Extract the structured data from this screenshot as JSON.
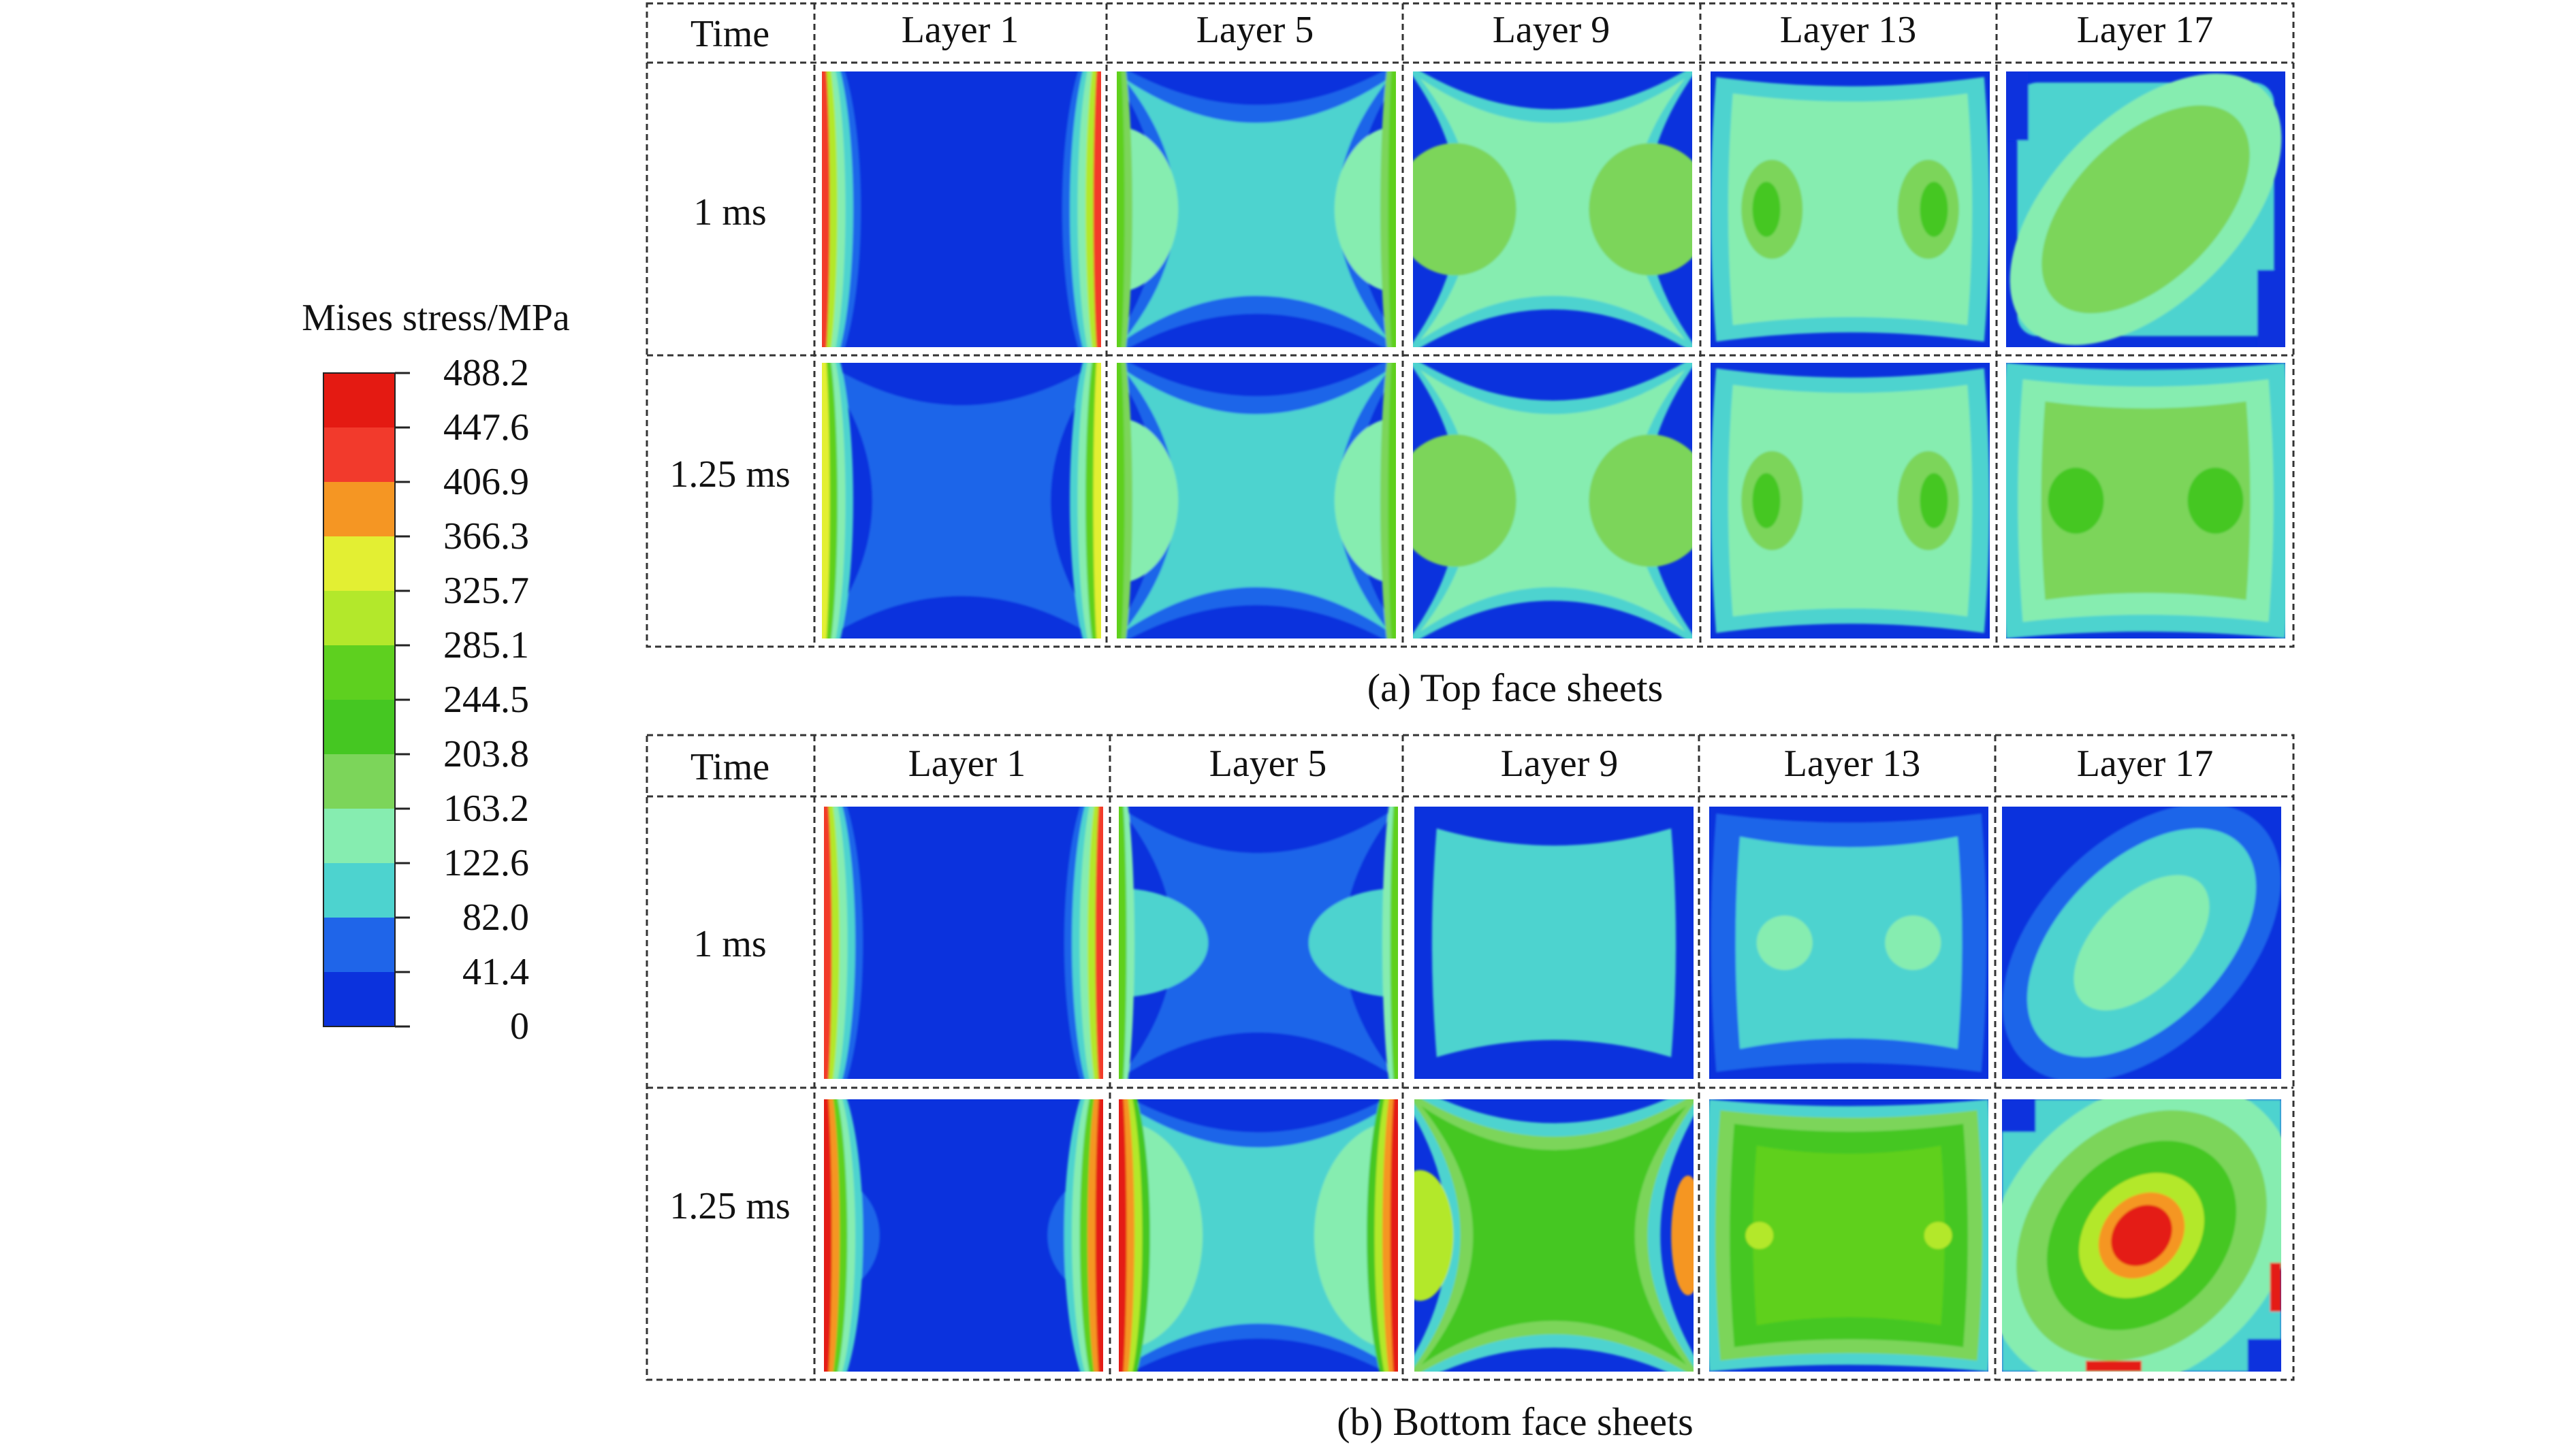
{
  "legend": {
    "title": "Mises stress/MPa",
    "ticks": [
      "488.2",
      "447.6",
      "406.9",
      "366.3",
      "325.7",
      "285.1",
      "244.5",
      "203.8",
      "163.2",
      "122.6",
      "82.0",
      "41.4",
      "0"
    ],
    "colors": [
      "#e41a12",
      "#f23a2c",
      "#f59623",
      "#e3ef33",
      "#b3e82b",
      "#5ed01f",
      "#45c722",
      "#7cd55a",
      "#86edb0",
      "#4dd3cf",
      "#1f65e9",
      "#0b32dd"
    ]
  },
  "panels": [
    {
      "id": "top",
      "caption": "(a) Top face sheets",
      "header_time": "Time",
      "layers": [
        "Layer 1",
        "Layer 5",
        "Layer 9",
        "Layer 13",
        "Layer 17"
      ],
      "rows": [
        {
          "time": "1 ms",
          "maps": [
            "edge-thin",
            "xshape-mid",
            "xshape-green",
            "rect-green",
            "diag-green"
          ]
        },
        {
          "time": "1.25 ms",
          "maps": [
            "edge-x",
            "xshape-mid",
            "xshape-green",
            "rect-green",
            "rect-green-full"
          ]
        }
      ]
    },
    {
      "id": "bottom",
      "caption": "(b) Bottom face sheets",
      "header_time": "Time",
      "layers": [
        "Layer 1",
        "Layer 5",
        "Layer 9",
        "Layer 13",
        "Layer 17"
      ],
      "rows": [
        {
          "time": "1 ms",
          "maps": [
            "edge-thin",
            "xshape-low",
            "rect-cyan",
            "rect-cyan-light",
            "diag-cyan"
          ]
        },
        {
          "time": "1.25 ms",
          "maps": [
            "edge-red-bump",
            "xshape-red",
            "xshape-yellow",
            "rect-yellow",
            "diag-red"
          ]
        }
      ]
    }
  ]
}
